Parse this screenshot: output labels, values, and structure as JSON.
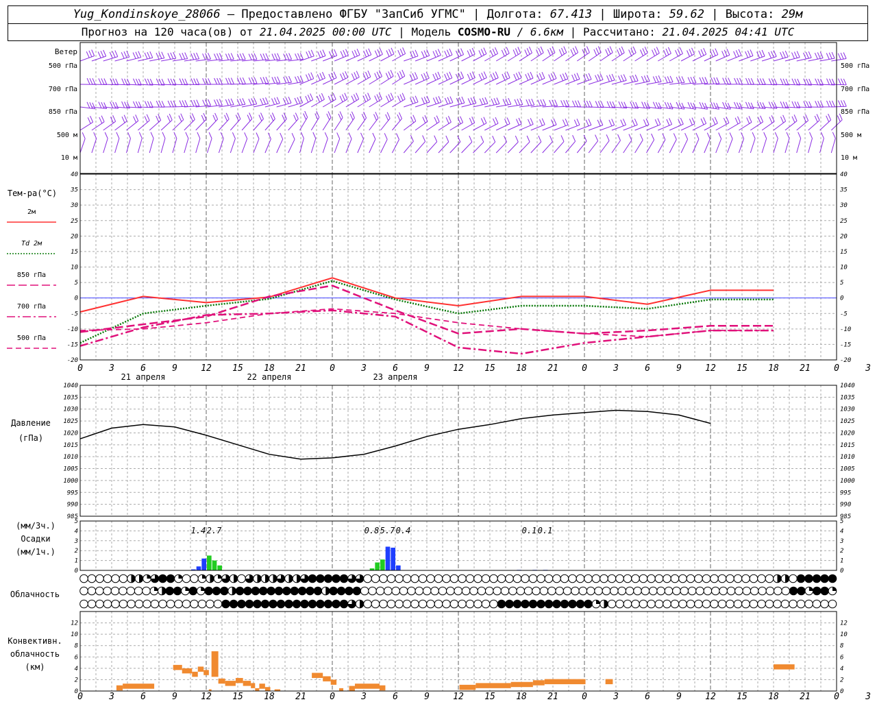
{
  "header": {
    "station": "Yug_Kondinskoye_28066",
    "provider": "– Предоставлено ФГБУ \"ЗапСиб УГМС\"",
    "lon_label": "Долгота:",
    "lon_value": "67.413",
    "lat_label": "Широта:",
    "lat_value": "59.62",
    "alt_label": "Высота:",
    "alt_value": "29м",
    "forecast_label": "Прогноз на 120 часа(ов) от",
    "forecast_start": "21.04.2025 00:00 UTC",
    "model_label": "Модель",
    "model_name": "COSMO-RU",
    "model_res": "/ 6.6км",
    "calc_label": "Рассчитано:",
    "calc_time": "21.04.2025 04:41 UTC"
  },
  "colors": {
    "wind": "#8a2be2",
    "t2m": "#ff3030",
    "td2m": "#0a7a0a",
    "t850": "#e0107a",
    "t700": "#e0107a",
    "t500": "#e0107a",
    "zero_line": "#4040ff",
    "pressure": "#000000",
    "precip_blue": "#1f3fff",
    "precip_green": "#22cc22",
    "convective": "#f08a30",
    "grid": "#aaaaaa"
  },
  "chart_data": [
    {
      "type": "wind-barbs",
      "panel": "wind",
      "label": "Ветер",
      "levels": [
        "500 гПа",
        "700 гПа",
        "850 гПа",
        "500 м",
        "10 м"
      ]
    },
    {
      "type": "line",
      "panel": "temperature",
      "ylabel": "Тем-ра(°C)",
      "ylim": [
        -20,
        40
      ],
      "yticks": [
        40,
        35,
        30,
        25,
        20,
        15,
        10,
        5,
        0,
        -5,
        -10,
        -15,
        -20
      ],
      "x_hours": [
        0,
        12,
        24,
        36,
        48,
        60,
        72,
        84,
        96,
        108,
        120,
        132
      ],
      "series": [
        {
          "name": "2м",
          "style": "solid",
          "values": [
            -4.5,
            0.5,
            -1.5,
            0.3,
            6.5,
            0.0,
            -2.5,
            0.5,
            0.5,
            -2.0,
            2.5,
            2.5
          ]
        },
        {
          "name": "Td 2м",
          "style": "dotted",
          "values": [
            -14.5,
            -5.0,
            -2.5,
            -0.3,
            5.5,
            -0.5,
            -5.0,
            -2.5,
            -2.5,
            -3.5,
            -0.5,
            -0.5
          ]
        },
        {
          "name": "850 гПа",
          "style": "dashed",
          "values": [
            -11.0,
            -8.5,
            -6.0,
            0.5,
            4.0,
            -4.0,
            -11.5,
            -10.0,
            -11.5,
            -10.5,
            -9.0,
            -9.0
          ]
        },
        {
          "name": "700 гПа",
          "style": "dashdot",
          "values": [
            -15.5,
            -9.5,
            -5.5,
            -5.0,
            -4.0,
            -6.0,
            -16.0,
            -18.0,
            -14.5,
            -12.5,
            -10.5,
            -10.5
          ]
        },
        {
          "name": "500 гПа",
          "style": "dash-thin",
          "values": [
            -10.5,
            -10.0,
            -8.0,
            -5.0,
            -3.5,
            -5.0,
            -8.0,
            -10.0,
            -11.5,
            -12.5,
            -10.5,
            -10.5
          ]
        }
      ]
    },
    {
      "type": "line",
      "panel": "pressure",
      "ylabel": "Давление",
      "ylabel2": "(гПа)",
      "ylim": [
        985,
        1040
      ],
      "yticks": [
        1040,
        1035,
        1030,
        1025,
        1020,
        1015,
        1010,
        1005,
        1000,
        995,
        990,
        985
      ],
      "x_hours": [
        0,
        6,
        12,
        18,
        24,
        30,
        36,
        42,
        48,
        54,
        60,
        66,
        72,
        78,
        84,
        90,
        96,
        102,
        108,
        114,
        120
      ],
      "values": [
        1017.5,
        1022,
        1023.5,
        1022.5,
        1019,
        1015,
        1011,
        1009,
        1009.5,
        1011,
        1014.5,
        1018.5,
        1021.5,
        1023.5,
        1026,
        1027.5,
        1028.5,
        1029.5,
        1029,
        1027.5,
        1024
      ]
    },
    {
      "type": "bar",
      "panel": "precipitation",
      "ylabel": "(мм/3ч.)",
      "ylabel2": "Осадки",
      "ylabel3": "(мм/1ч.)",
      "ylim": [
        0,
        5
      ],
      "yticks": [
        5,
        4,
        3,
        2,
        1,
        0
      ],
      "labels3h": [
        {
          "hour": 22.5,
          "text": "1.4"
        },
        {
          "hour": 25.5,
          "text": "2.7"
        },
        {
          "hour": 55.5,
          "text": "0.8"
        },
        {
          "hour": 58.5,
          "text": "5.7"
        },
        {
          "hour": 61.5,
          "text": "0.4"
        },
        {
          "hour": 85.5,
          "text": "0.1"
        },
        {
          "hour": 88.5,
          "text": "0.1"
        }
      ],
      "bars": [
        {
          "hour": 21,
          "value": 0.1,
          "kind": "blue"
        },
        {
          "hour": 22,
          "value": 0.4,
          "kind": "blue"
        },
        {
          "hour": 23,
          "value": 1.2,
          "kind": "blue"
        },
        {
          "hour": 24,
          "value": 1.5,
          "kind": "green"
        },
        {
          "hour": 25,
          "value": 1.0,
          "kind": "green"
        },
        {
          "hour": 26,
          "value": 0.5,
          "kind": "green"
        },
        {
          "hour": 55,
          "value": 0.2,
          "kind": "green"
        },
        {
          "hour": 56,
          "value": 0.8,
          "kind": "green"
        },
        {
          "hour": 57,
          "value": 1.1,
          "kind": "green"
        },
        {
          "hour": 58,
          "value": 2.4,
          "kind": "blue"
        },
        {
          "hour": 59,
          "value": 2.3,
          "kind": "blue"
        },
        {
          "hour": 60,
          "value": 0.5,
          "kind": "blue"
        },
        {
          "hour": 83,
          "value": 0.05,
          "kind": "blue"
        },
        {
          "hour": 86,
          "value": 0.05,
          "kind": "blue"
        },
        {
          "hour": 88,
          "value": 0.05,
          "kind": "blue"
        }
      ]
    },
    {
      "type": "table",
      "panel": "cloudiness",
      "label": "Облачность",
      "rows": [
        "CCCCCCHHQTBBQCCQHQTHCTHHHTHHTBBBBBTTCCCCCCCCCCCCCCCCCCCCCCCCCCCCCCCCCCCCCCCCCCCCCCCCCCCCHHCBBBBB",
        "CCCCCCCCCQHBBQBQBBBHBBBBBBBBBBBHBBBBCCCCCCCCCCCCCCCCCCCCCCCCCCCCCCCCCCCCCCCCCCCCCCCCCCCCCCCBBQBBQ",
        "CCCCCCCCCCCCCCCCCCBBBBBBBBBBBBBBBBTHCCCCCCCCCCCCCCCCCBBBBBBBBBBBBQHCCCCCCCCCCCCCCCCCCCCCCCCCCCCC"
      ]
    },
    {
      "type": "bar",
      "panel": "convective",
      "ylabel": "Конвективн.",
      "ylabel2": "облачность",
      "ylabel3": "(км)",
      "ylim": [
        0,
        14
      ],
      "yticks": [
        12,
        10,
        8,
        6,
        4,
        2,
        0
      ],
      "bars": [
        {
          "start": 6.9,
          "end": 8.1,
          "top": 1.0
        },
        {
          "start": 8.1,
          "end": 14.1,
          "top": 1.3
        },
        {
          "start": 17.7,
          "end": 19.4,
          "top": 4.6
        },
        {
          "start": 19.4,
          "end": 21.3,
          "top": 4.0
        },
        {
          "start": 21.3,
          "end": 22.4,
          "top": 3.4
        },
        {
          "start": 22.4,
          "end": 23.5,
          "top": 4.3
        },
        {
          "start": 23.5,
          "end": 24.5,
          "top": 3.7
        },
        {
          "start": 24.5,
          "end": 25.0,
          "top": 0.3
        },
        {
          "start": 25.0,
          "end": 26.3,
          "top": 7.0,
          "bottom": 2.5
        },
        {
          "start": 26.3,
          "end": 27.6,
          "top": 2.2
        },
        {
          "start": 27.6,
          "end": 29.6,
          "top": 1.8
        },
        {
          "start": 29.6,
          "end": 31.0,
          "top": 2.3
        },
        {
          "start": 31.0,
          "end": 32.5,
          "top": 1.8
        },
        {
          "start": 32.5,
          "end": 33.3,
          "top": 1.4
        },
        {
          "start": 33.3,
          "end": 34.1,
          "top": 0.5
        },
        {
          "start": 34.1,
          "end": 35.2,
          "top": 1.3
        },
        {
          "start": 35.2,
          "end": 36.2,
          "top": 0.7
        },
        {
          "start": 37.0,
          "end": 38.1,
          "top": 0.3
        },
        {
          "start": 44.1,
          "end": 46.2,
          "top": 3.2
        },
        {
          "start": 46.2,
          "end": 47.7,
          "top": 2.6
        },
        {
          "start": 47.7,
          "end": 48.8,
          "top": 2.0
        },
        {
          "start": 49.3,
          "end": 50.1,
          "top": 0.5
        },
        {
          "start": 51.2,
          "end": 52.3,
          "top": 0.9
        },
        {
          "start": 52.3,
          "end": 57.0,
          "top": 1.3
        },
        {
          "start": 57.0,
          "end": 58.1,
          "top": 1.0
        },
        {
          "start": 72.2,
          "end": 75.3,
          "top": 1.1
        },
        {
          "start": 75.3,
          "end": 82.0,
          "top": 1.4
        },
        {
          "start": 82.0,
          "end": 86.2,
          "top": 1.6
        },
        {
          "start": 86.2,
          "end": 88.4,
          "top": 1.9
        },
        {
          "start": 88.4,
          "end": 96.2,
          "top": 2.1
        },
        {
          "start": 100.0,
          "end": 101.4,
          "top": 2.1
        },
        {
          "start": 132.0,
          "end": 136.0,
          "top": 4.7
        }
      ]
    }
  ],
  "axis": {
    "x_ticks": [
      "0",
      "3",
      "6",
      "9",
      "12",
      "15",
      "18",
      "21",
      "0",
      "3",
      "6",
      "9",
      "12",
      "15",
      "18",
      "21",
      "0",
      "3",
      "6",
      "9",
      "12",
      "15",
      "18",
      "21",
      "0",
      "3",
      "6"
    ],
    "dates": [
      "21 апреля",
      "22 апреля",
      "23 апреля"
    ]
  }
}
